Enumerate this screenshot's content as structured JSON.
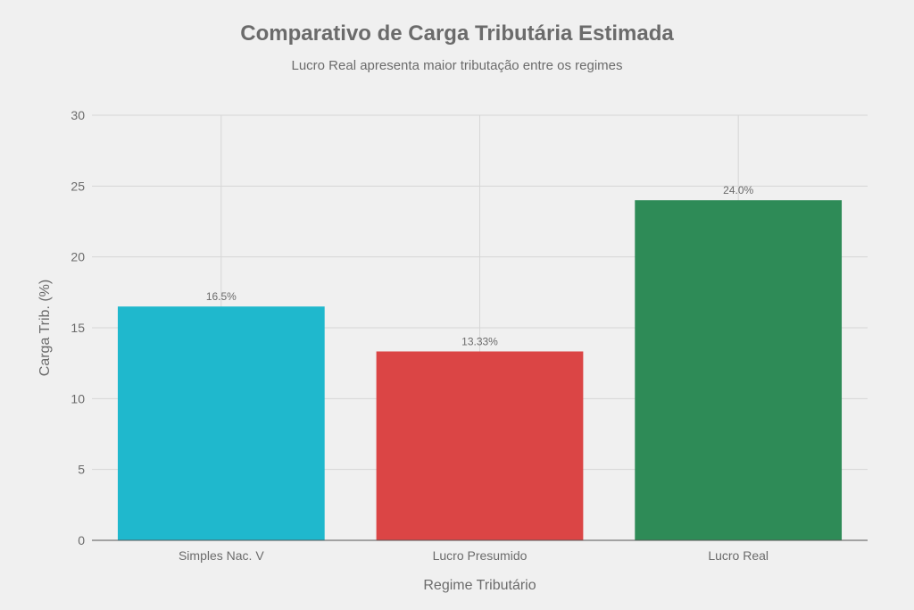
{
  "chart_data": {
    "type": "bar",
    "title": "Comparativo de Carga Tributária Estimada",
    "subtitle": "Lucro Real apresenta maior tributação entre os regimes",
    "xlabel": "Regime Tributário",
    "ylabel": "Carga Trib. (%)",
    "categories": [
      "Simples Nac. V",
      "Lucro Presumido",
      "Lucro Real"
    ],
    "values": [
      16.5,
      13.33,
      24.0
    ],
    "data_labels": [
      "16.5%",
      "13.33%",
      "24.0%"
    ],
    "colors": [
      "#1fb8cd",
      "#db4545",
      "#2e8b57"
    ],
    "ylim": [
      0,
      30
    ],
    "yticks": [
      0,
      5,
      10,
      15,
      20,
      25,
      30
    ],
    "grid": true
  }
}
